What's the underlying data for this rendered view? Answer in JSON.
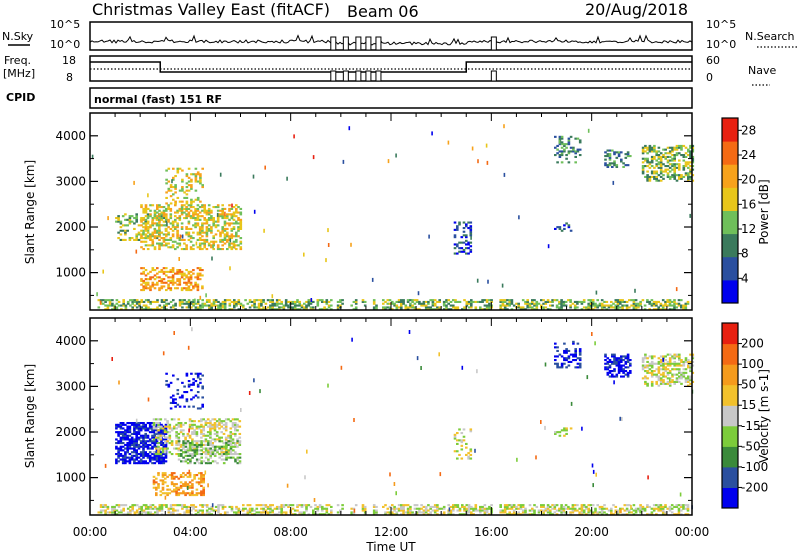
{
  "header": {
    "title": "Christmas Valley East (fitACF)",
    "beam": "Beam 06",
    "date": "20/Aug/2018"
  },
  "top_panels": {
    "nsky_label": "N.Sky",
    "nsky_ticks": [
      "10^5",
      "10^0"
    ],
    "nsky_right_ticks": [
      "10^5",
      "10^0"
    ],
    "nsearch_label": "N.Search",
    "freq_label": "Freq.",
    "freq_unit": "[MHz]",
    "freq_ticks": [
      "18",
      "8"
    ],
    "nave_ticks": [
      "60",
      "0"
    ],
    "nave_label": "Nave",
    "cpid_label": "CPID",
    "cpid_text": "normal (fast) 151 RF"
  },
  "colors": {
    "power_scale": [
      "#0000ee",
      "#2a4f9f",
      "#3a7a5c",
      "#6fbf5a",
      "#e8c61a",
      "#f7a21b",
      "#f46a14",
      "#e82010"
    ],
    "velocity_scale": [
      "#0000ee",
      "#2a4f9f",
      "#3a8a3a",
      "#7ccc3a",
      "#c8c8c8",
      "#f2c12c",
      "#f59b1c",
      "#f46a14",
      "#e82010"
    ],
    "panel_border": "#000000"
  },
  "chart_data": [
    {
      "type": "heatmap",
      "title": "Power",
      "ylabel": "Slant Range [km]",
      "yticks": [
        "1000",
        "2000",
        "3000",
        "4000"
      ],
      "ylim": [
        180,
        4500
      ],
      "xlim": [
        0,
        24
      ],
      "xticks": [
        "00:00",
        "04:00",
        "08:00",
        "12:00",
        "16:00",
        "20:00",
        "00:00"
      ],
      "colorbar_label": "Power [dB]",
      "colorbar_ticks": [
        "4",
        "8",
        "12",
        "16",
        "20",
        "24",
        "28"
      ],
      "colorbar_range": [
        0,
        30
      ],
      "regions": [
        {
          "t0": 0.3,
          "t1": 23.8,
          "r0": 180,
          "r1": 420,
          "level": 3,
          "density": 0.55
        },
        {
          "t0": 1.0,
          "t1": 3.0,
          "r0": 1700,
          "r1": 2300,
          "level": 3,
          "density": 0.35
        },
        {
          "t0": 2.0,
          "t1": 6.0,
          "r0": 1500,
          "r1": 2500,
          "level": 4,
          "density": 0.45
        },
        {
          "t0": 2.0,
          "t1": 4.5,
          "r0": 600,
          "r1": 1100,
          "level": 5,
          "density": 0.5
        },
        {
          "t0": 3.0,
          "t1": 4.5,
          "r0": 2500,
          "r1": 3300,
          "level": 4,
          "density": 0.25
        },
        {
          "t0": 14.5,
          "t1": 15.2,
          "r0": 1400,
          "r1": 2100,
          "level": 1,
          "density": 0.3
        },
        {
          "t0": 18.5,
          "t1": 19.2,
          "r0": 1900,
          "r1": 2100,
          "level": 1,
          "density": 0.35
        },
        {
          "t0": 18.5,
          "t1": 19.5,
          "r0": 3400,
          "r1": 4000,
          "level": 2,
          "density": 0.35
        },
        {
          "t0": 22.0,
          "t1": 24.0,
          "r0": 3000,
          "r1": 3800,
          "level": 3,
          "density": 0.5
        },
        {
          "t0": 20.5,
          "t1": 21.5,
          "r0": 3300,
          "r1": 3700,
          "level": 2,
          "density": 0.3
        }
      ],
      "gaps": [
        [
          9.6,
          9.8
        ],
        [
          10.1,
          10.3
        ],
        [
          10.6,
          10.8
        ],
        [
          11.0,
          11.2
        ],
        [
          11.4,
          11.6
        ],
        [
          16.0,
          16.3
        ]
      ]
    },
    {
      "type": "heatmap",
      "title": "Velocity",
      "ylabel": "Slant Range [km]",
      "yticks": [
        "1000",
        "2000",
        "3000",
        "4000"
      ],
      "ylim": [
        180,
        4500
      ],
      "xlim": [
        0,
        24
      ],
      "xlabel": "Time UT",
      "xticks": [
        "00:00",
        "04:00",
        "08:00",
        "12:00",
        "16:00",
        "20:00",
        "00:00"
      ],
      "colorbar_label": "Velocity [m s-1]",
      "colorbar_ticks": [
        "200",
        "100",
        "50",
        "15",
        "-15",
        "-50",
        "-100",
        "-200"
      ],
      "colorbar_range": [
        -250,
        250
      ],
      "regions": [
        {
          "t0": 0.3,
          "t1": 23.8,
          "r0": 180,
          "r1": 420,
          "level": 4,
          "density": 0.55
        },
        {
          "t0": 1.0,
          "t1": 3.0,
          "r0": 1300,
          "r1": 2200,
          "level": 0,
          "density": 0.7
        },
        {
          "t0": 2.5,
          "t1": 6.0,
          "r0": 1500,
          "r1": 2300,
          "level": 4,
          "density": 0.45
        },
        {
          "t0": 3.5,
          "t1": 6.0,
          "r0": 1300,
          "r1": 1800,
          "level": 3,
          "density": 0.45
        },
        {
          "t0": 2.5,
          "t1": 4.5,
          "r0": 600,
          "r1": 1100,
          "level": 6,
          "density": 0.45
        },
        {
          "t0": 3.0,
          "t1": 4.5,
          "r0": 2500,
          "r1": 3300,
          "level": 0,
          "density": 0.2
        },
        {
          "t0": 14.5,
          "t1": 15.2,
          "r0": 1400,
          "r1": 2100,
          "level": 4,
          "density": 0.3
        },
        {
          "t0": 18.5,
          "t1": 19.2,
          "r0": 1900,
          "r1": 2100,
          "level": 4,
          "density": 0.35
        },
        {
          "t0": 18.5,
          "t1": 19.5,
          "r0": 3400,
          "r1": 4000,
          "level": 0,
          "density": 0.3
        },
        {
          "t0": 20.5,
          "t1": 21.5,
          "r0": 3200,
          "r1": 3700,
          "level": 0,
          "density": 0.55
        },
        {
          "t0": 22.0,
          "t1": 24.0,
          "r0": 3000,
          "r1": 3700,
          "level": 4,
          "density": 0.5
        }
      ],
      "gaps": [
        [
          9.6,
          9.8
        ],
        [
          10.1,
          10.3
        ],
        [
          10.6,
          10.8
        ],
        [
          11.0,
          11.2
        ],
        [
          11.4,
          11.6
        ],
        [
          16.0,
          16.3
        ]
      ]
    }
  ]
}
